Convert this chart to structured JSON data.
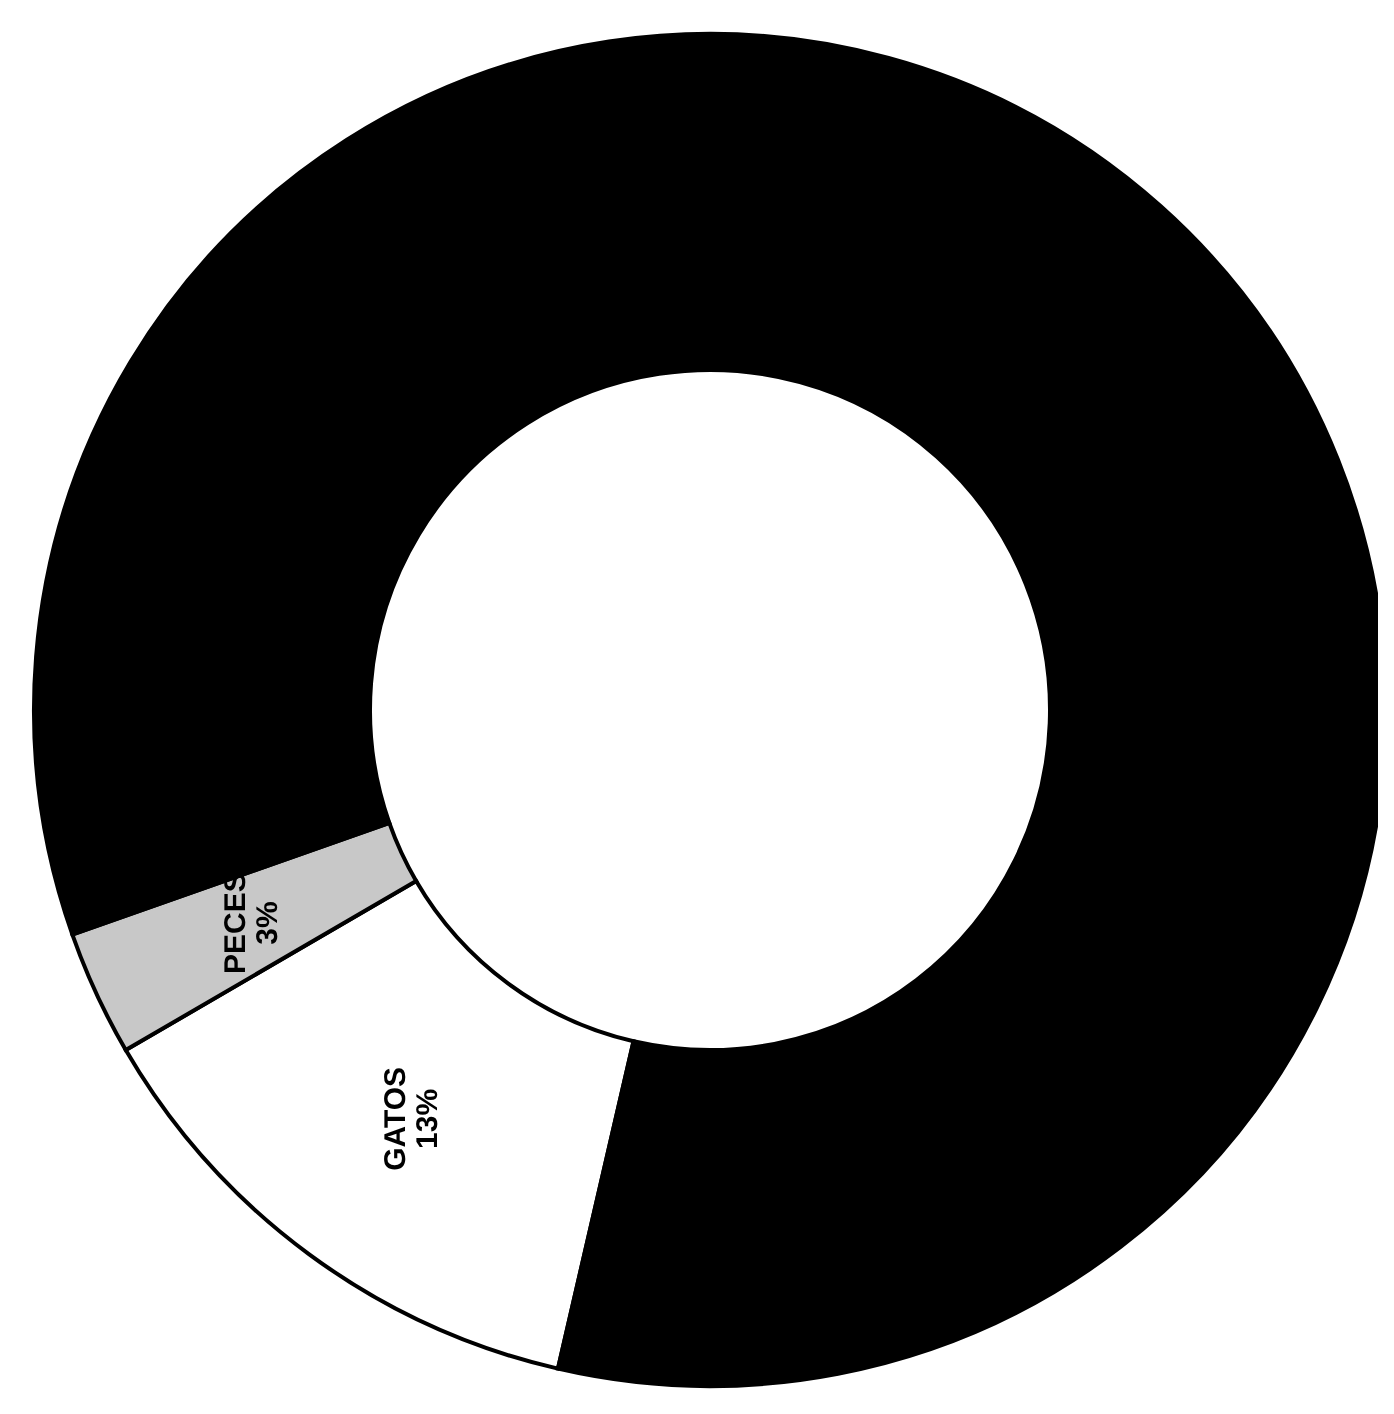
{
  "chart_data": {
    "type": "donut",
    "categories": [
      "GATOS",
      "PECES",
      null
    ],
    "values": [
      13,
      3,
      84
    ],
    "colors": [
      "#ffffff",
      "#c8c8c8",
      "#000000"
    ],
    "value_labels": [
      "13%",
      "3%",
      null
    ],
    "legend": false
  }
}
